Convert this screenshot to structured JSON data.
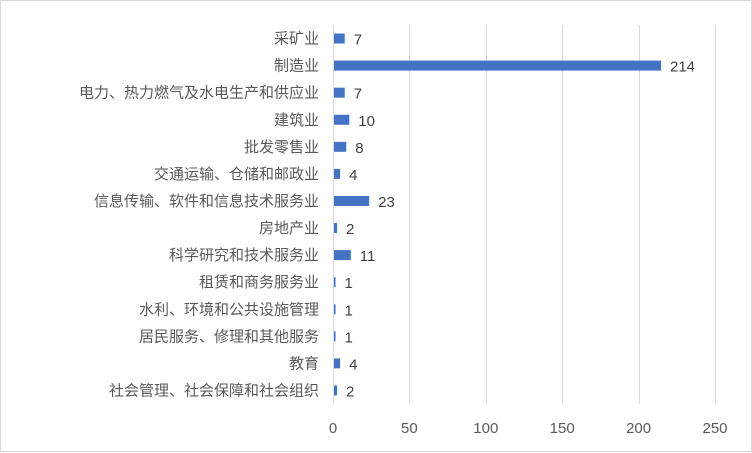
{
  "chart_data": {
    "type": "bar",
    "orientation": "horizontal",
    "categories": [
      "采矿业",
      "制造业",
      "电力、热力燃气及水电生产和供应业",
      "建筑业",
      "批发零售业",
      "交通运输、仓储和邮政业",
      "信息传输、软件和信息技术服务业",
      "房地产业",
      "科学研究和技术服务业",
      "租赁和商务服务业",
      "水利、环境和公共设施管理",
      "居民服务、修理和其他服务",
      "教育",
      "社会管理、社会保障和社会组织"
    ],
    "values": [
      7,
      214,
      7,
      10,
      8,
      4,
      23,
      2,
      11,
      1,
      1,
      1,
      4,
      2
    ],
    "xlim": [
      0,
      250
    ],
    "xticks": [
      0,
      50,
      100,
      150,
      200,
      250
    ],
    "title": "",
    "xlabel": "",
    "ylabel": "",
    "grid": "vertical",
    "legend": "none",
    "data_labels": true,
    "bar_color": "#4472c4",
    "grid_color": "#d9d9d9"
  }
}
